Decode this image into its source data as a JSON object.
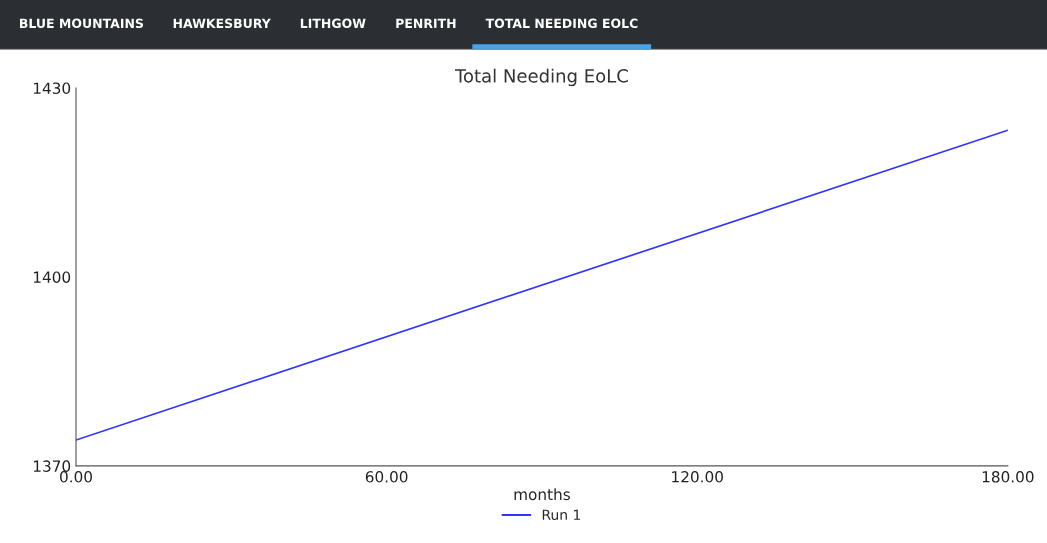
{
  "chart_data": {
    "type": "line",
    "title": "Total Needing EoLC",
    "xlabel": "months",
    "annotations": [
      "BLUE MOUNTAINS",
      "HAWKESBURY",
      "LITHGOW",
      "PENRITH",
      "TOTAL NEEDING EOLC"
    ],
    "x": [
      0,
      180
    ],
    "series": [
      {
        "name": "Run 1",
        "color": "#3333ff",
        "values": [
          1374.1,
          1423.3
        ]
      }
    ],
    "xlim": [
      0,
      180
    ],
    "xticks": [
      {
        "value": 0,
        "label": "0.00"
      },
      {
        "value": 60,
        "label": "60.00"
      },
      {
        "value": 120,
        "label": "120.00"
      },
      {
        "value": 180,
        "label": "180.00"
      }
    ],
    "ylim": [
      1370,
      1430
    ],
    "yticks": [
      1370,
      1400,
      1430
    ],
    "grid": false,
    "legend": "bottom",
    "marker": "none",
    "line_style": "solid"
  }
}
